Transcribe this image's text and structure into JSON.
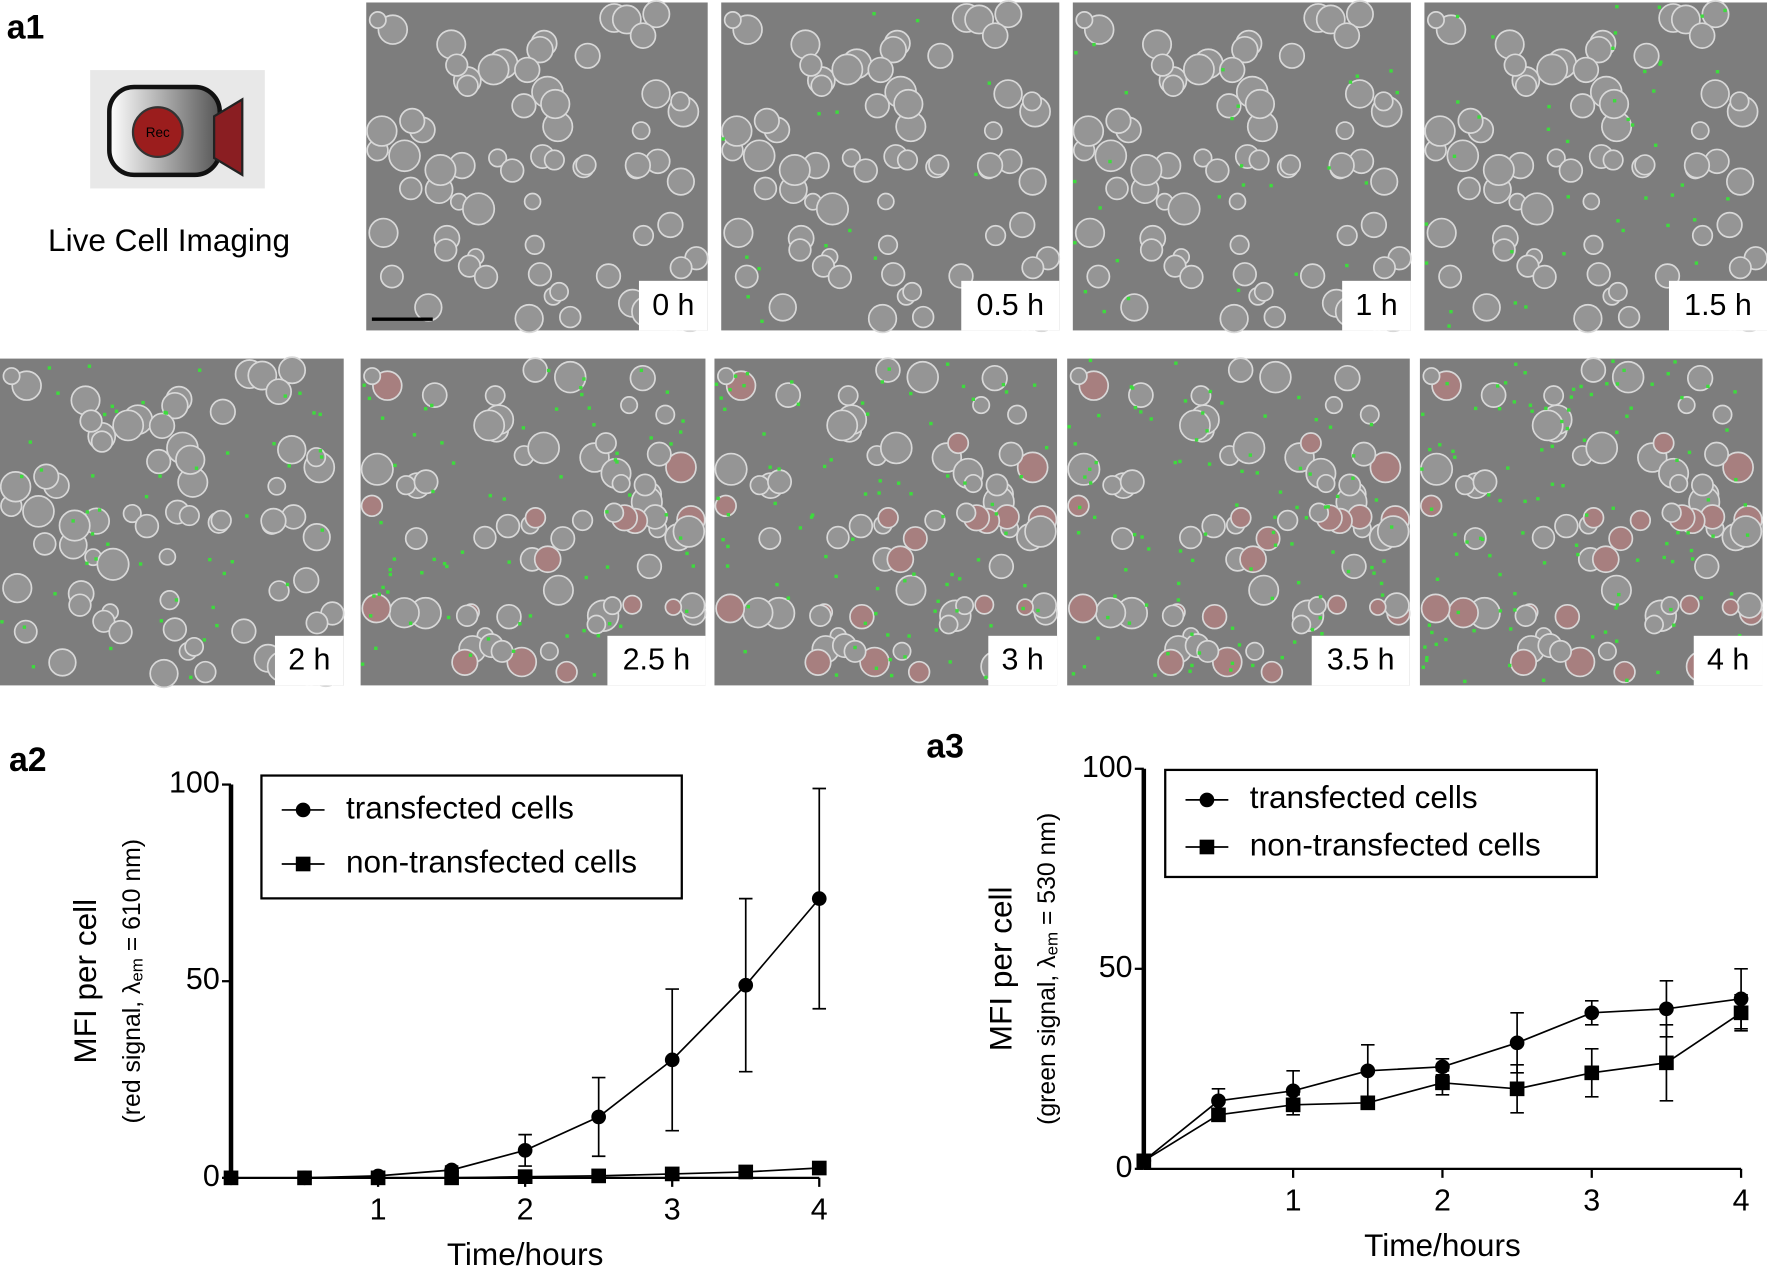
{
  "figure": {
    "panel_label": "a1",
    "caption": "Live Cell Imaging",
    "icon_text": "Rec",
    "frames": [
      "0 h",
      "0.5 h",
      "1 h",
      "1.5 h",
      "2 h",
      "2.5 h",
      "3 h",
      "3.5 h",
      "4 h"
    ]
  },
  "chart_data": [
    {
      "type": "line",
      "label": "a2",
      "xlabel": "Time/hours",
      "ylabel": "MFI per cell",
      "ylabel_detail": {
        "prefix": "(red signal, λ",
        "sub": "em",
        "suffix": " = 610 nm)"
      },
      "x": [
        0,
        0.5,
        1,
        1.5,
        2,
        2.5,
        3,
        3.5,
        4
      ],
      "series": [
        {
          "name": "transfected cells",
          "marker": "circle",
          "color": "#000000",
          "values": [
            0,
            0,
            0.5,
            2,
            7,
            15.5,
            30,
            49,
            71
          ],
          "errors": [
            0,
            0,
            0.5,
            1,
            4,
            10,
            18,
            22,
            28
          ]
        },
        {
          "name": "non-transfected cells",
          "marker": "square",
          "color": "#000000",
          "values": [
            0,
            0,
            0,
            0,
            0.3,
            0.5,
            1,
            1.5,
            2.5
          ],
          "errors": [
            0,
            0,
            0,
            0,
            0.3,
            0.3,
            0.5,
            0.5,
            0.5
          ]
        }
      ],
      "xlim": [
        0,
        4
      ],
      "xticks": [
        1,
        2,
        3,
        4
      ],
      "ylim": [
        0,
        100
      ],
      "yticks": [
        0,
        50,
        100
      ],
      "legend": "upper left"
    },
    {
      "type": "line",
      "label": "a3",
      "xlabel": "Time/hours",
      "ylabel": "MFI per cell",
      "ylabel_detail": {
        "prefix": "(green signal, λ",
        "sub": "em",
        "suffix": " = 530 nm)"
      },
      "x": [
        0,
        0.5,
        1,
        1.5,
        2,
        2.5,
        3,
        3.5,
        4
      ],
      "series": [
        {
          "name": "transfected cells",
          "marker": "circle",
          "color": "#000000",
          "values": [
            2,
            17,
            19.5,
            24.5,
            25.5,
            31.5,
            39,
            40,
            42.5
          ],
          "errors": [
            0,
            3,
            5,
            6.5,
            2,
            7.5,
            3,
            7,
            7.5
          ]
        },
        {
          "name": "non-transfected cells",
          "marker": "square",
          "color": "#000000",
          "values": [
            2,
            13.5,
            16,
            16.5,
            21.5,
            20,
            24,
            26.5,
            39
          ],
          "errors": [
            0,
            1.5,
            2.5,
            0,
            3,
            6,
            6,
            9.5,
            4.5
          ]
        }
      ],
      "xlim": [
        0,
        4
      ],
      "xticks": [
        1,
        2,
        3,
        4
      ],
      "ylim": [
        0,
        100
      ],
      "yticks": [
        0,
        50,
        100
      ],
      "legend": "upper left"
    }
  ]
}
